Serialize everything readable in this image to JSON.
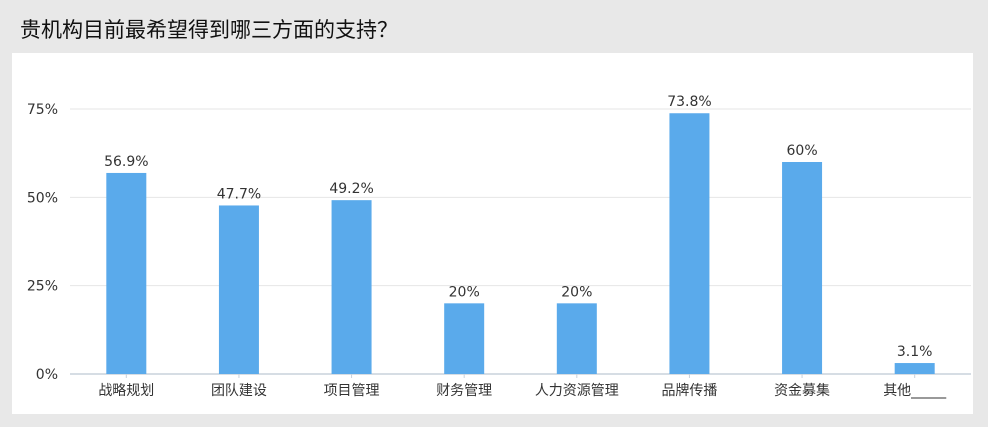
{
  "page": {
    "title": "贵机构目前最希望得到哪三方面的支持？"
  },
  "chart_data": {
    "type": "bar",
    "title": "贵机构目前最希望得到哪三方面的支持？",
    "categories": [
      "战略规划",
      "团队建设",
      "项目管理",
      "财务管理",
      "人力资源管理",
      "品牌传播",
      "资金募集",
      "其他_____"
    ],
    "values": [
      56.9,
      47.7,
      49.2,
      20,
      20,
      73.8,
      60,
      3.1
    ],
    "data_labels": [
      "56.9%",
      "47.7%",
      "49.2%",
      "20%",
      "20%",
      "73.8%",
      "60%",
      "3.1%"
    ],
    "y_ticks": [
      0,
      25,
      50,
      75
    ],
    "y_tick_labels": [
      "0%",
      "25%",
      "50%",
      "75%"
    ],
    "ylim": [
      0,
      75
    ],
    "xlabel": "",
    "ylabel": "",
    "grid": true,
    "legend": "none",
    "colors": {
      "bar": "#5aaaeb",
      "grid": "#e6e6e6",
      "axis": "#c8d2dc",
      "label": "#333333"
    }
  }
}
